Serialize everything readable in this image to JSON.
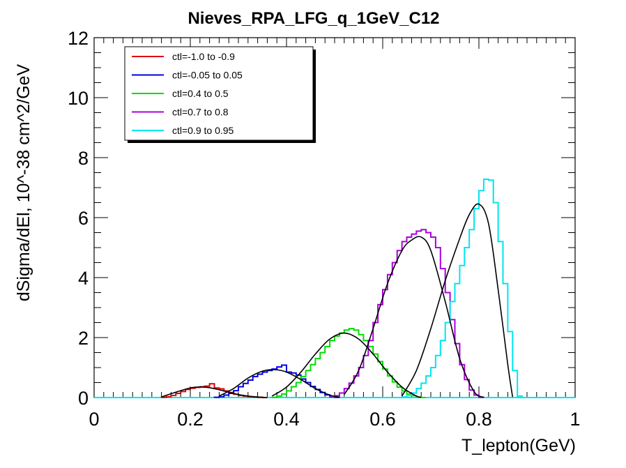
{
  "chart_data": {
    "type": "line",
    "title": "Nieves_RPA_LFG_q_1GeV_C12",
    "xlabel": "T_lepton(GeV)",
    "ylabel": "dSigma/dEl, 10^-38 cm^2/GeV",
    "xlim": [
      0,
      1
    ],
    "ylim": [
      0,
      12
    ],
    "xticks": [
      "0",
      "0.2",
      "0.4",
      "0.6",
      "0.8",
      "1"
    ],
    "yticks": [
      "0",
      "2",
      "4",
      "6",
      "8",
      "10",
      "12"
    ],
    "grid": false,
    "legend_position": "top-left",
    "histogram_style": "step",
    "series": [
      {
        "name": "ctl=-1.0 to -0.9",
        "color": "#dd0000",
        "x": [
          0.14,
          0.15,
          0.16,
          0.17,
          0.18,
          0.19,
          0.2,
          0.21,
          0.22,
          0.23,
          0.24,
          0.25,
          0.26,
          0.27,
          0.28,
          0.29,
          0.3,
          0.31,
          0.32,
          0.33,
          0.34,
          0.35
        ],
        "y": [
          0.01,
          0.03,
          0.07,
          0.14,
          0.2,
          0.27,
          0.31,
          0.34,
          0.36,
          0.38,
          0.46,
          0.32,
          0.29,
          0.22,
          0.17,
          0.11,
          0.07,
          0.05,
          0.03,
          0.02,
          0.01,
          0
        ]
      },
      {
        "name": "ctl=-0.05 to 0.05",
        "color": "#0000dd",
        "x": [
          0.25,
          0.26,
          0.27,
          0.28,
          0.29,
          0.3,
          0.31,
          0.32,
          0.33,
          0.34,
          0.35,
          0.36,
          0.37,
          0.38,
          0.39,
          0.4,
          0.41,
          0.42,
          0.43,
          0.44,
          0.45,
          0.46,
          0.47,
          0.48,
          0.49,
          0.5
        ],
        "y": [
          0.01,
          0.03,
          0.08,
          0.14,
          0.23,
          0.36,
          0.47,
          0.58,
          0.7,
          0.78,
          0.85,
          0.9,
          0.95,
          1.02,
          1.08,
          0.85,
          0.82,
          0.75,
          0.62,
          0.5,
          0.37,
          0.27,
          0.17,
          0.09,
          0.04,
          0.01
        ]
      },
      {
        "name": "ctl=0.4 to 0.5",
        "color": "#00dd00",
        "x": [
          0.37,
          0.38,
          0.39,
          0.4,
          0.41,
          0.42,
          0.43,
          0.44,
          0.45,
          0.46,
          0.47,
          0.48,
          0.49,
          0.5,
          0.51,
          0.52,
          0.53,
          0.54,
          0.55,
          0.56,
          0.57,
          0.58,
          0.59,
          0.6,
          0.61,
          0.62,
          0.63,
          0.64,
          0.65,
          0.66,
          0.67,
          0.68
        ],
        "y": [
          0.01,
          0.05,
          0.12,
          0.22,
          0.36,
          0.5,
          0.7,
          0.9,
          1.1,
          1.3,
          1.5,
          1.7,
          1.9,
          2.05,
          2.15,
          2.25,
          2.3,
          2.25,
          2.1,
          1.9,
          1.7,
          1.45,
          1.2,
          0.95,
          0.72,
          0.52,
          0.35,
          0.22,
          0.12,
          0.06,
          0.02,
          0
        ]
      },
      {
        "name": "ctl=0.7 to 0.8",
        "color": "#aa00dd",
        "x": [
          0.49,
          0.5,
          0.51,
          0.52,
          0.53,
          0.54,
          0.55,
          0.56,
          0.57,
          0.58,
          0.59,
          0.6,
          0.61,
          0.62,
          0.63,
          0.64,
          0.65,
          0.66,
          0.67,
          0.68,
          0.69,
          0.7,
          0.71,
          0.72,
          0.73,
          0.74,
          0.75,
          0.76,
          0.77,
          0.78,
          0.79,
          0.8
        ],
        "y": [
          0.02,
          0.06,
          0.15,
          0.3,
          0.48,
          0.72,
          1.0,
          1.4,
          1.9,
          2.5,
          3.1,
          3.6,
          4.1,
          4.5,
          4.9,
          5.2,
          5.35,
          5.45,
          5.55,
          5.6,
          5.5,
          5.35,
          5.0,
          4.3,
          3.5,
          2.6,
          1.8,
          1.1,
          0.6,
          0.25,
          0.08,
          0.01
        ]
      },
      {
        "name": "ctl=0.9 to 0.95",
        "color": "#00e5ee",
        "x": [
          0.64,
          0.65,
          0.66,
          0.67,
          0.68,
          0.69,
          0.7,
          0.71,
          0.72,
          0.73,
          0.74,
          0.75,
          0.76,
          0.77,
          0.78,
          0.79,
          0.8,
          0.81,
          0.82,
          0.83,
          0.84,
          0.85,
          0.86,
          0.87,
          0.88
        ],
        "y": [
          0.02,
          0.06,
          0.15,
          0.3,
          0.48,
          0.72,
          1.0,
          1.4,
          1.9,
          2.5,
          3.2,
          3.8,
          4.4,
          5.0,
          5.6,
          6.3,
          6.9,
          7.28,
          7.25,
          6.5,
          5.2,
          3.8,
          2.2,
          0.9,
          0.05
        ]
      }
    ],
    "fit_curves": [
      {
        "color": "#000000",
        "x": [
          0.14,
          0.17,
          0.2,
          0.22,
          0.24,
          0.27,
          0.3,
          0.33,
          0.36
        ],
        "y": [
          0.02,
          0.18,
          0.32,
          0.35,
          0.33,
          0.22,
          0.1,
          0.03,
          0
        ]
      },
      {
        "color": "#000000",
        "x": [
          0.26,
          0.29,
          0.32,
          0.35,
          0.375,
          0.4,
          0.43,
          0.46,
          0.49,
          0.51
        ],
        "y": [
          0.05,
          0.3,
          0.65,
          0.88,
          0.93,
          0.85,
          0.6,
          0.3,
          0.08,
          0.01
        ]
      },
      {
        "color": "#000000",
        "x": [
          0.37,
          0.4,
          0.43,
          0.46,
          0.49,
          0.52,
          0.55,
          0.58,
          0.61,
          0.64,
          0.67,
          0.68
        ],
        "y": [
          0.05,
          0.35,
          0.85,
          1.45,
          1.95,
          2.15,
          1.95,
          1.45,
          0.85,
          0.35,
          0.05,
          0.01
        ]
      },
      {
        "color": "#000000",
        "x": [
          0.52,
          0.55,
          0.58,
          0.61,
          0.64,
          0.66,
          0.68,
          0.7,
          0.73,
          0.76,
          0.79,
          0.81
        ],
        "y": [
          0.1,
          0.9,
          2.3,
          3.8,
          4.9,
          5.25,
          5.35,
          4.9,
          3.2,
          1.3,
          0.2,
          0.01
        ]
      },
      {
        "color": "#000000",
        "x": [
          0.64,
          0.67,
          0.7,
          0.73,
          0.76,
          0.78,
          0.8,
          0.82,
          0.84,
          0.86,
          0.87
        ],
        "y": [
          0.05,
          0.9,
          2.3,
          3.9,
          5.3,
          6.1,
          6.45,
          5.8,
          3.6,
          1.1,
          0.02
        ]
      }
    ]
  }
}
